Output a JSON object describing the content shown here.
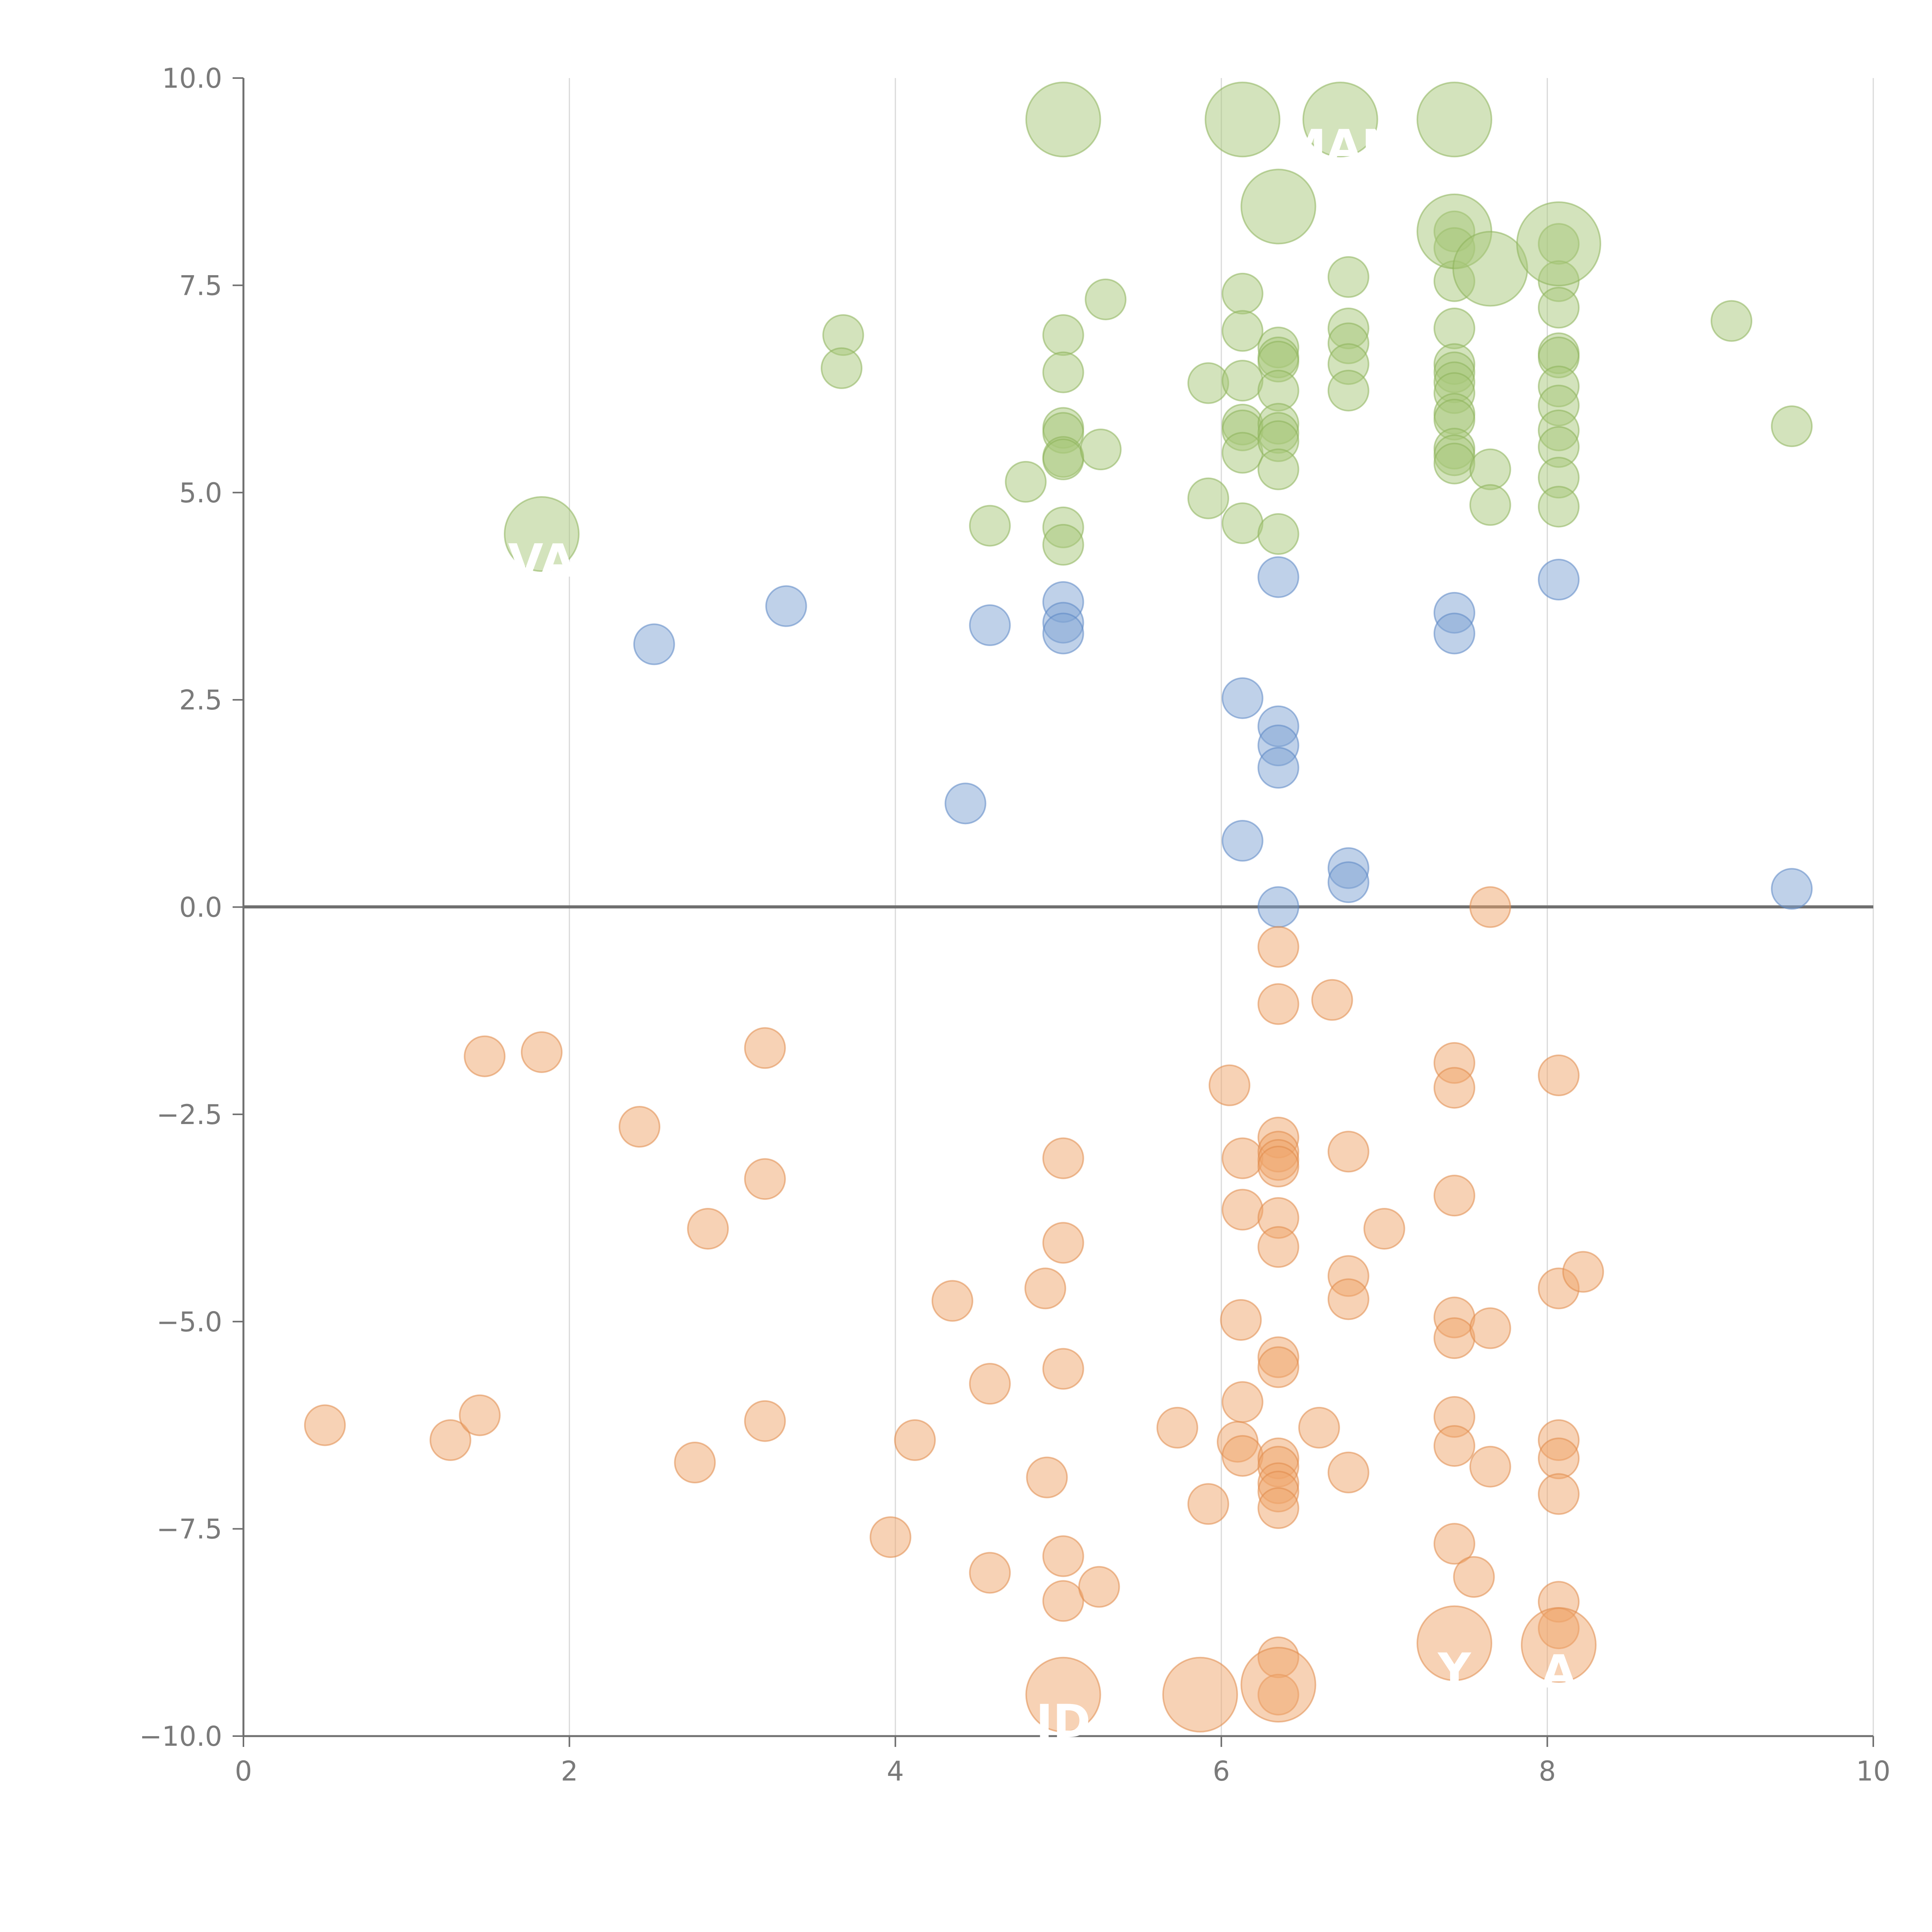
{
  "chart_data": {
    "type": "scatter",
    "title": "",
    "xlabel": "",
    "ylabel": "",
    "xlim": [
      0,
      10
    ],
    "ylim": [
      -10,
      10
    ],
    "grid": "vertical",
    "x_ticks": [
      "0",
      "2",
      "4",
      "6",
      "8",
      "10"
    ],
    "y_ticks": [
      "10.0",
      "7.5",
      "5.0",
      "2.5",
      "0.0",
      "−2.5",
      "−5.0",
      "−7.5",
      "−10.0"
    ],
    "colors": {
      "green": "#a8c87a",
      "blue": "#7fa3d4",
      "orange": "#f0a56c",
      "green_stroke": "#8db35a",
      "blue_stroke": "#5b86c4",
      "orange_stroke": "#e08a4a",
      "axis": "#6f6f6f",
      "grid": "#d9d9d9"
    },
    "series": [
      {
        "name": "green",
        "color": "#a8c87a",
        "points": [
          [
            5.03,
            9.5,
            2
          ],
          [
            6.13,
            9.5,
            2
          ],
          [
            6.73,
            9.5,
            2
          ],
          [
            7.43,
            9.5,
            2
          ],
          [
            6.35,
            8.45,
            2
          ],
          [
            7.43,
            8.15,
            2
          ],
          [
            7.65,
            7.7,
            2
          ],
          [
            8.07,
            8.0,
            2.2
          ],
          [
            1.83,
            4.5,
            2
          ],
          [
            3.68,
            6.9,
            1
          ],
          [
            3.67,
            6.5,
            1
          ],
          [
            5.29,
            7.33,
            1
          ],
          [
            5.03,
            6.9,
            1
          ],
          [
            5.03,
            6.45,
            1
          ],
          [
            5.03,
            5.78,
            1
          ],
          [
            5.03,
            5.72,
            1
          ],
          [
            5.03,
            5.43,
            1
          ],
          [
            5.03,
            5.4,
            1
          ],
          [
            5.26,
            5.52,
            1
          ],
          [
            4.8,
            5.13,
            1
          ],
          [
            4.58,
            4.6,
            1
          ],
          [
            5.03,
            4.58,
            1
          ],
          [
            5.03,
            4.37,
            1
          ],
          [
            5.92,
            6.32,
            1
          ],
          [
            5.92,
            4.93,
            1
          ],
          [
            6.13,
            7.4,
            1
          ],
          [
            6.13,
            6.95,
            1
          ],
          [
            6.13,
            6.35,
            1
          ],
          [
            6.13,
            5.82,
            1
          ],
          [
            6.13,
            5.75,
            1
          ],
          [
            6.13,
            5.48,
            1
          ],
          [
            6.13,
            4.63,
            1
          ],
          [
            6.35,
            6.75,
            1
          ],
          [
            6.35,
            6.63,
            1
          ],
          [
            6.35,
            6.58,
            1
          ],
          [
            6.35,
            6.23,
            1
          ],
          [
            6.35,
            5.83,
            1
          ],
          [
            6.35,
            5.72,
            1
          ],
          [
            6.35,
            5.62,
            1
          ],
          [
            6.35,
            5.28,
            1
          ],
          [
            6.35,
            4.5,
            1
          ],
          [
            6.78,
            7.6,
            1
          ],
          [
            6.78,
            6.98,
            1
          ],
          [
            6.78,
            6.8,
            1
          ],
          [
            6.78,
            6.55,
            1
          ],
          [
            6.78,
            6.23,
            1
          ],
          [
            7.43,
            8.15,
            1
          ],
          [
            7.43,
            7.95,
            1
          ],
          [
            7.43,
            7.55,
            1
          ],
          [
            7.43,
            6.98,
            1
          ],
          [
            7.43,
            6.55,
            1
          ],
          [
            7.43,
            6.45,
            1
          ],
          [
            7.43,
            6.33,
            1
          ],
          [
            7.43,
            6.2,
            1
          ],
          [
            7.43,
            5.95,
            1
          ],
          [
            7.43,
            5.88,
            1
          ],
          [
            7.43,
            5.53,
            1
          ],
          [
            7.43,
            5.45,
            1
          ],
          [
            7.43,
            5.35,
            1
          ],
          [
            7.65,
            5.28,
            1
          ],
          [
            7.65,
            4.85,
            1
          ],
          [
            8.07,
            8.0,
            1
          ],
          [
            8.07,
            7.55,
            1
          ],
          [
            8.07,
            7.23,
            1
          ],
          [
            8.07,
            6.68,
            1
          ],
          [
            8.07,
            6.63,
            1
          ],
          [
            8.07,
            6.28,
            1
          ],
          [
            8.07,
            6.05,
            1
          ],
          [
            8.07,
            5.75,
            1
          ],
          [
            8.07,
            5.55,
            1
          ],
          [
            8.07,
            5.18,
            1
          ],
          [
            8.07,
            4.83,
            1
          ],
          [
            9.13,
            7.07,
            1
          ],
          [
            9.5,
            5.8,
            1
          ]
        ]
      },
      {
        "name": "blue",
        "color": "#7fa3d4",
        "points": [
          [
            2.52,
            3.17,
            1
          ],
          [
            3.33,
            3.63,
            1
          ],
          [
            4.58,
            3.4,
            1
          ],
          [
            5.03,
            3.68,
            1
          ],
          [
            5.03,
            3.43,
            1
          ],
          [
            5.03,
            3.3,
            1
          ],
          [
            4.43,
            1.25,
            1
          ],
          [
            6.13,
            2.52,
            1
          ],
          [
            6.35,
            2.18,
            1
          ],
          [
            6.35,
            1.95,
            1
          ],
          [
            6.35,
            1.68,
            1
          ],
          [
            6.13,
            0.8,
            1
          ],
          [
            6.35,
            3.98,
            1
          ],
          [
            6.35,
            0.0,
            1
          ],
          [
            6.78,
            0.47,
            1
          ],
          [
            6.78,
            0.3,
            1
          ],
          [
            7.43,
            3.55,
            1
          ],
          [
            7.43,
            3.3,
            1
          ],
          [
            8.07,
            3.95,
            1
          ],
          [
            9.5,
            0.22,
            1
          ]
        ]
      },
      {
        "name": "orange",
        "color": "#f0a56c",
        "points": [
          [
            5.03,
            -9.5,
            2
          ],
          [
            5.87,
            -9.5,
            2
          ],
          [
            6.35,
            -9.38,
            2
          ],
          [
            7.43,
            -8.88,
            2
          ],
          [
            8.07,
            -8.9,
            2
          ],
          [
            0.5,
            -6.25,
            1
          ],
          [
            1.27,
            -6.43,
            1
          ],
          [
            1.45,
            -6.13,
            1
          ],
          [
            1.48,
            -1.8,
            1
          ],
          [
            1.83,
            -1.75,
            1
          ],
          [
            2.43,
            -2.65,
            1
          ],
          [
            2.77,
            -6.7,
            1
          ],
          [
            2.85,
            -3.88,
            1
          ],
          [
            3.2,
            -1.7,
            1
          ],
          [
            3.2,
            -3.28,
            1
          ],
          [
            3.2,
            -6.2,
            1
          ],
          [
            3.97,
            -7.6,
            1
          ],
          [
            4.12,
            -6.43,
            1
          ],
          [
            4.35,
            -4.75,
            1
          ],
          [
            4.58,
            -5.75,
            1
          ],
          [
            4.58,
            -8.03,
            1
          ],
          [
            4.92,
            -4.6,
            1
          ],
          [
            4.93,
            -6.88,
            1
          ],
          [
            5.03,
            -3.03,
            1
          ],
          [
            5.03,
            -4.05,
            1
          ],
          [
            5.03,
            -5.57,
            1
          ],
          [
            5.03,
            -7.83,
            1
          ],
          [
            5.03,
            -8.37,
            1
          ],
          [
            5.25,
            -8.2,
            1
          ],
          [
            5.73,
            -6.28,
            1
          ],
          [
            5.92,
            -7.2,
            1
          ],
          [
            6.05,
            -2.15,
            1
          ],
          [
            6.1,
            -6.45,
            1
          ],
          [
            6.12,
            -4.98,
            1
          ],
          [
            6.13,
            -3.03,
            1
          ],
          [
            6.13,
            -3.65,
            1
          ],
          [
            6.13,
            -5.97,
            1
          ],
          [
            6.13,
            -6.62,
            1
          ],
          [
            6.35,
            -0.48,
            1
          ],
          [
            6.35,
            -1.17,
            1
          ],
          [
            6.35,
            -2.78,
            1
          ],
          [
            6.35,
            -2.95,
            1
          ],
          [
            6.35,
            -3.05,
            1
          ],
          [
            6.35,
            -3.13,
            1
          ],
          [
            6.35,
            -3.75,
            1
          ],
          [
            6.35,
            -4.1,
            1
          ],
          [
            6.35,
            -5.43,
            1
          ],
          [
            6.35,
            -5.55,
            1
          ],
          [
            6.35,
            -6.65,
            1
          ],
          [
            6.35,
            -6.75,
            1
          ],
          [
            6.35,
            -6.95,
            1
          ],
          [
            6.35,
            -7.05,
            1
          ],
          [
            6.35,
            -7.25,
            1
          ],
          [
            6.35,
            -9.05,
            1
          ],
          [
            6.35,
            -9.5,
            1
          ],
          [
            6.6,
            -6.28,
            1
          ],
          [
            6.68,
            -1.12,
            1
          ],
          [
            6.78,
            -2.95,
            1
          ],
          [
            6.78,
            -4.45,
            1
          ],
          [
            6.78,
            -4.73,
            1
          ],
          [
            6.78,
            -6.82,
            1
          ],
          [
            7.0,
            -3.88,
            1
          ],
          [
            7.43,
            -1.88,
            1
          ],
          [
            7.43,
            -2.18,
            1
          ],
          [
            7.43,
            -3.48,
            1
          ],
          [
            7.43,
            -4.95,
            1
          ],
          [
            7.43,
            -5.2,
            1
          ],
          [
            7.43,
            -6.15,
            1
          ],
          [
            7.43,
            -6.5,
            1
          ],
          [
            7.43,
            -7.68,
            1
          ],
          [
            7.55,
            -8.08,
            1
          ],
          [
            7.65,
            0.0,
            1
          ],
          [
            7.65,
            -5.08,
            1
          ],
          [
            7.65,
            -6.75,
            1
          ],
          [
            8.07,
            -2.03,
            1
          ],
          [
            8.07,
            -4.6,
            1
          ],
          [
            8.07,
            -6.43,
            1
          ],
          [
            8.07,
            -6.65,
            1
          ],
          [
            8.07,
            -7.08,
            1
          ],
          [
            8.07,
            -8.38,
            1
          ],
          [
            8.07,
            -8.7,
            1
          ],
          [
            8.22,
            -4.4,
            1
          ]
        ]
      }
    ],
    "annotations": [
      {
        "text": "MAN",
        "x": 6.73,
        "y": 9.5
      },
      {
        "text": "VA",
        "x": 1.83,
        "y": 4.5
      },
      {
        "text": "ID",
        "x": 5.03,
        "y": -9.5
      },
      {
        "text": "Y",
        "x": 7.43,
        "y": -8.88
      },
      {
        "text": "A",
        "x": 8.07,
        "y": -8.9
      }
    ]
  }
}
